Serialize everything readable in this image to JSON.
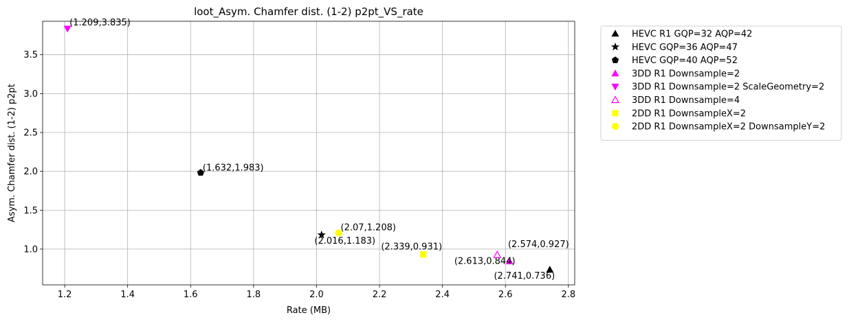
{
  "chart_data": {
    "type": "scatter",
    "title": "loot_Asym. Chamfer dist. (1-2) p2pt_VS_rate",
    "xlabel": "Rate (MB)",
    "ylabel": "Asym. Chamfer dist. (1-2) p2pt",
    "xlim": [
      1.13,
      2.82
    ],
    "ylim": [
      0.54,
      3.93
    ],
    "xticks": [
      1.2,
      1.4,
      1.6,
      1.8,
      2.0,
      2.2,
      2.4,
      2.6,
      2.8
    ],
    "xtick_labels": [
      "1.2",
      "1.4",
      "1.6",
      "1.8",
      "2.0",
      "2.2",
      "2.4",
      "2.6",
      "2.8"
    ],
    "yticks": [
      1.0,
      1.5,
      2.0,
      2.5,
      3.0,
      3.5
    ],
    "ytick_labels": [
      "1.0",
      "1.5",
      "2.0",
      "2.5",
      "3.0",
      "3.5"
    ],
    "grid": true,
    "legend_position": "outside-right",
    "series": [
      {
        "name": "HEVC R1 GQP=32 AQP=42",
        "marker": "triangle-up",
        "color": "#000000",
        "filled": true,
        "points": [
          {
            "x": 2.741,
            "y": 0.736,
            "label": "(2.741,0.736)"
          }
        ]
      },
      {
        "name": "HEVC GQP=36 AQP=47",
        "marker": "star",
        "color": "#000000",
        "filled": true,
        "points": [
          {
            "x": 2.016,
            "y": 1.183,
            "label": "(2.016,1.183)"
          }
        ]
      },
      {
        "name": "HEVC GQP=40 AQP=52",
        "marker": "pentagon",
        "color": "#000000",
        "filled": true,
        "points": [
          {
            "x": 1.632,
            "y": 1.983,
            "label": "(1.632,1.983)"
          }
        ]
      },
      {
        "name": "3DD R1 Downsample=2",
        "marker": "triangle-up",
        "color": "#ff00ff",
        "filled": true,
        "points": [
          {
            "x": 2.613,
            "y": 0.844,
            "label": "(2.613,0.844)"
          }
        ]
      },
      {
        "name": "3DD R1 Downsample=2 ScaleGeometry=2",
        "marker": "triangle-down",
        "color": "#ff00ff",
        "filled": true,
        "points": [
          {
            "x": 1.209,
            "y": 3.835,
            "label": "(1.209,3.835)"
          }
        ]
      },
      {
        "name": "3DD R1 Downsample=4",
        "marker": "triangle-up",
        "color": "#ff00ff",
        "filled": false,
        "points": [
          {
            "x": 2.574,
            "y": 0.927,
            "label": "(2.574,0.927)"
          }
        ]
      },
      {
        "name": "2DD R1 DownsampleX=2",
        "marker": "square",
        "color": "#ffff00",
        "filled": true,
        "points": [
          {
            "x": 2.339,
            "y": 0.931,
            "label": "(2.339,0.931)"
          }
        ]
      },
      {
        "name": "2DD R1 DownsampleX=2 DownsampleY=2",
        "marker": "octagon",
        "color": "#ffff00",
        "filled": true,
        "points": [
          {
            "x": 2.07,
            "y": 1.208,
            "label": "(2.07,1.208)"
          }
        ]
      }
    ]
  }
}
